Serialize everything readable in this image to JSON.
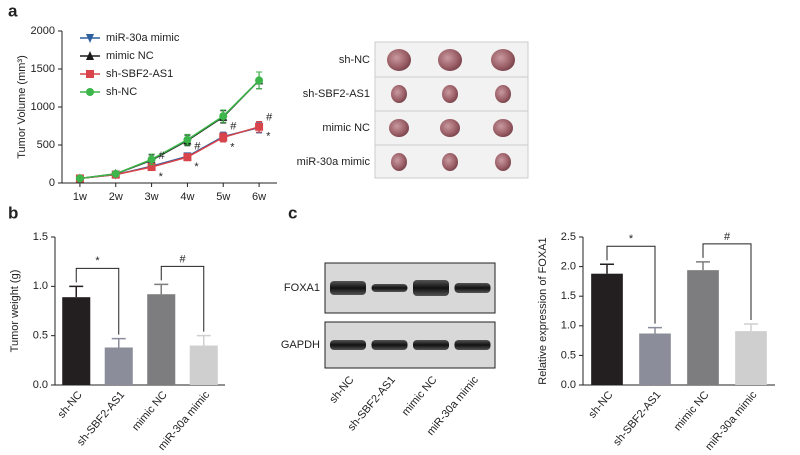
{
  "panel_labels": [
    "a",
    "b",
    "c"
  ],
  "chart_data": [
    {
      "type": "line",
      "y_label": "Tumor Volume (mm³)",
      "categories": [
        "1w",
        "2w",
        "3w",
        "4w",
        "5w",
        "6w"
      ],
      "ylim": [
        0,
        2000
      ],
      "yticks": [
        0,
        500,
        1000,
        1500,
        2000
      ],
      "series": [
        {
          "name": "miR-30a mimic",
          "color": "#2e5f9e",
          "marker": "triangle-down",
          "values": [
            60,
            110,
            220,
            350,
            610,
            730
          ],
          "errors": [
            20,
            25,
            40,
            45,
            60,
            70
          ]
        },
        {
          "name": "mimic NC",
          "color": "#1a1a1a",
          "marker": "triangle-up",
          "values": [
            60,
            120,
            300,
            560,
            870,
            1350
          ],
          "errors": [
            20,
            30,
            70,
            70,
            80,
            110
          ]
        },
        {
          "name": "sh-SBF2-AS1",
          "color": "#d9434a",
          "marker": "square",
          "values": [
            60,
            110,
            210,
            340,
            600,
            740
          ],
          "errors": [
            20,
            25,
            40,
            45,
            60,
            70
          ]
        },
        {
          "name": "sh-NC",
          "color": "#3cb54a",
          "marker": "circle",
          "values": [
            60,
            120,
            310,
            570,
            880,
            1350
          ],
          "errors": [
            20,
            30,
            70,
            70,
            80,
            110
          ]
        }
      ],
      "annotations": [
        {
          "text": "#",
          "x": "3w",
          "series": "miR-30a mimic"
        },
        {
          "text": "*",
          "x": "3w",
          "series": "sh-SBF2-AS1"
        },
        {
          "text": "#",
          "x": "4w",
          "series": "miR-30a mimic"
        },
        {
          "text": "*",
          "x": "4w",
          "series": "sh-SBF2-AS1"
        },
        {
          "text": "#",
          "x": "5w",
          "series": "miR-30a mimic"
        },
        {
          "text": "*",
          "x": "5w",
          "series": "sh-SBF2-AS1"
        },
        {
          "text": "#",
          "x": "6w",
          "series": "miR-30a mimic"
        },
        {
          "text": "*",
          "x": "6w",
          "series": "sh-SBF2-AS1"
        }
      ]
    },
    {
      "type": "bar",
      "y_label": "Tumor weight (g)",
      "categories": [
        "sh-NC",
        "sh-SBF2-AS1",
        "mimic NC",
        "miR-30a mimic"
      ],
      "values": [
        0.89,
        0.38,
        0.92,
        0.4
      ],
      "errors": [
        0.11,
        0.09,
        0.1,
        0.1
      ],
      "colors": [
        "#231f20",
        "#8b8e9a",
        "#7d7d7f",
        "#cfcfcf"
      ],
      "ylim": [
        0,
        1.5
      ],
      "yticks": [
        {
          "value": 0,
          "label": "0.0"
        },
        0.5,
        {
          "value": 1,
          "label": "1.0"
        },
        1.5
      ],
      "comparisons": [
        {
          "from": "sh-NC",
          "to": "sh-SBF2-AS1",
          "text": "*"
        },
        {
          "from": "mimic NC",
          "to": "miR-30a mimic",
          "text": "#"
        }
      ]
    },
    {
      "type": "bar",
      "y_label": "Relative expression of FOXA1",
      "categories": [
        "sh-NC",
        "sh-SBF2-AS1",
        "mimic NC",
        "miR-30a mimic"
      ],
      "values": [
        1.88,
        0.87,
        1.94,
        0.91
      ],
      "errors": [
        0.16,
        0.1,
        0.14,
        0.12
      ],
      "colors": [
        "#231f20",
        "#8b8e9a",
        "#7d7d7f",
        "#cfcfcf"
      ],
      "ylim": [
        0,
        2.5
      ],
      "yticks": [
        {
          "value": 0,
          "label": "0.0"
        },
        0.5,
        {
          "value": 1,
          "label": "1.0"
        },
        1.5,
        {
          "value": 2,
          "label": "2.0"
        },
        2.5
      ],
      "comparisons": [
        {
          "from": "sh-NC",
          "to": "sh-SBF2-AS1",
          "text": "*"
        },
        {
          "from": "mimic NC",
          "to": "miR-30a mimic",
          "text": "#"
        }
      ]
    }
  ],
  "tumor_images": {
    "rows": [
      "sh-NC",
      "sh-SBF2-AS1",
      "mimic NC",
      "miR-30a mimic"
    ]
  },
  "western_blot": {
    "bands": [
      "FOXA1",
      "GAPDH"
    ],
    "lanes": [
      "sh-NC",
      "sh-SBF2-AS1",
      "mimic NC",
      "miR-30a mimic"
    ]
  }
}
